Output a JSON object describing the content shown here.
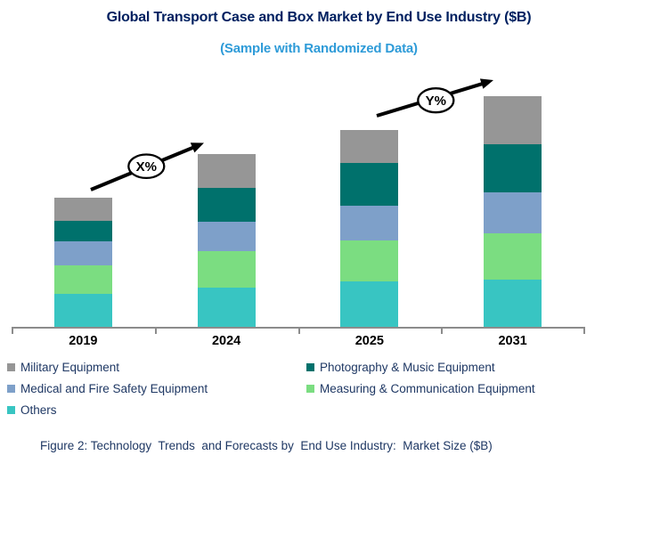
{
  "header": {
    "title": "Global Transport Case and Box Market by End Use Industry ($B)",
    "subtitle": "(Sample with Randomized Data)"
  },
  "chart_data": {
    "type": "bar",
    "stacked": true,
    "title": "Global Transport Case and Box Market by End Use Industry ($B)",
    "subtitle": "(Sample with Randomized Data)",
    "categories": [
      "2019",
      "2024",
      "2025",
      "2031"
    ],
    "series": [
      {
        "name": "Others",
        "color": "#38C5C2",
        "values": [
          37,
          44,
          51,
          53
        ]
      },
      {
        "name": "Measuring & Communication Equipment",
        "color": "#7BDD81",
        "values": [
          32,
          41,
          46,
          52
        ]
      },
      {
        "name": "Medical and Fire Safety Equipment",
        "color": "#7EA0C9",
        "values": [
          27,
          33,
          39,
          46
        ]
      },
      {
        "name": "Photography & Music Equipment",
        "color": "#00716C",
        "values": [
          23,
          38,
          48,
          54
        ]
      },
      {
        "name": "Military Equipment",
        "color": "#969696",
        "values": [
          26,
          38,
          37,
          54
        ]
      }
    ],
    "stack_order": "bottom-to-top",
    "units": "$B (y-axis unlabeled; values estimated from relative bar heights)",
    "ylim": [
      0,
      280
    ],
    "grid": false,
    "y_axis_visible": false,
    "annotations": [
      {
        "label": "X%",
        "between": [
          "2019",
          "2024"
        ]
      },
      {
        "label": "Y%",
        "between": [
          "2025",
          "2031"
        ]
      }
    ],
    "legend_position": "bottom-left, two columns"
  },
  "legend": {
    "items": [
      {
        "label": "Military Equipment",
        "color": "#969696"
      },
      {
        "label": "Photography & Music Equipment",
        "color": "#00716C"
      },
      {
        "label": "Medical and Fire Safety Equipment",
        "color": "#7EA0C9"
      },
      {
        "label": "Measuring & Communication Equipment",
        "color": "#7BDD81"
      },
      {
        "label": "Others",
        "color": "#38C5C2"
      }
    ]
  },
  "caption": "Figure 2: Technology  Trends  and Forecasts by  End Use Industry:  Market Size ($B)"
}
